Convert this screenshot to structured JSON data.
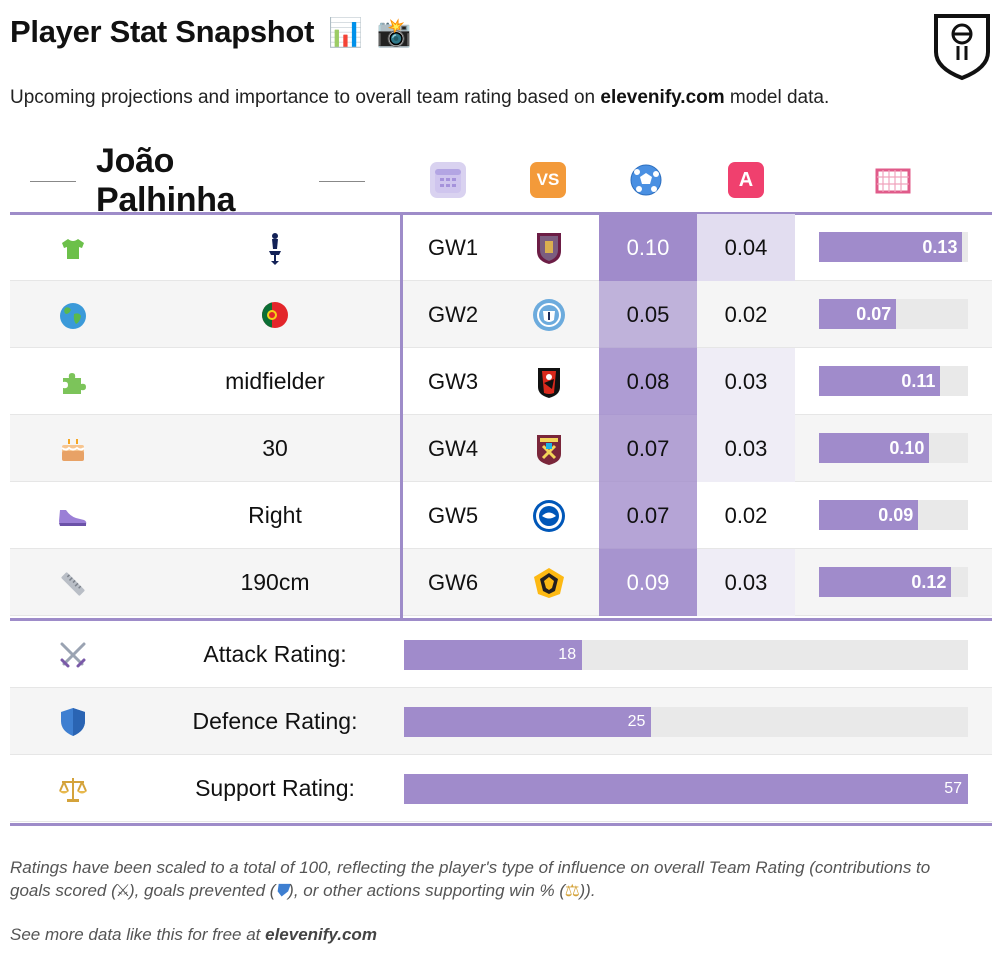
{
  "title": "Player Stat Snapshot",
  "title_emojis": [
    "📊",
    "📸"
  ],
  "subtitle": {
    "prefix": "Upcoming projections and importance to overall team rating based on ",
    "site": "elevenify.com",
    "suffix": " model data."
  },
  "player": {
    "name": "João Palhinha"
  },
  "header_icons": [
    "calendar-icon",
    "vs-icon",
    "football-icon",
    "assist-icon",
    "goal-net-icon"
  ],
  "header_texts": {
    "vs": "VS",
    "assist": "A"
  },
  "profile": [
    {
      "icon": "shirt-icon",
      "value": ""
    },
    {
      "icon": "globe-icon",
      "value": ""
    },
    {
      "icon": "puzzle-icon",
      "value": "midfielder"
    },
    {
      "icon": "cake-icon",
      "value": "30"
    },
    {
      "icon": "shoe-icon",
      "value": "Right"
    },
    {
      "icon": "ruler-icon",
      "value": "190cm"
    }
  ],
  "fixtures": [
    {
      "gw": "GW1",
      "opponent": "Burnley",
      "xg": 0.1,
      "xg_label": "0.10",
      "xa": "0.04",
      "total": 0.13,
      "total_label": "0.13"
    },
    {
      "gw": "GW2",
      "opponent": "Manchester City",
      "xg": 0.05,
      "xg_label": "0.05",
      "xa": "0.02",
      "total": 0.07,
      "total_label": "0.07"
    },
    {
      "gw": "GW3",
      "opponent": "Bournemouth",
      "xg": 0.08,
      "xg_label": "0.08",
      "xa": "0.03",
      "total": 0.11,
      "total_label": "0.11"
    },
    {
      "gw": "GW4",
      "opponent": "West Ham",
      "xg": 0.07,
      "xg_label": "0.07",
      "xa": "0.03",
      "total": 0.1,
      "total_label": "0.10"
    },
    {
      "gw": "GW5",
      "opponent": "Brighton",
      "xg": 0.07,
      "xg_label": "0.07",
      "xa": "0.02",
      "total": 0.09,
      "total_label": "0.09"
    },
    {
      "gw": "GW6",
      "opponent": "Wolves",
      "xg": 0.09,
      "xg_label": "0.09",
      "xa": "0.03",
      "total": 0.12,
      "total_label": "0.12"
    }
  ],
  "total_scale_max": 0.135,
  "ratings": [
    {
      "icon": "swords-icon",
      "label": "Attack Rating:",
      "value": 18,
      "value_label": "18"
    },
    {
      "icon": "shield-icon",
      "label": "Defence Rating:",
      "value": 25,
      "value_label": "25"
    },
    {
      "icon": "scales-icon",
      "label": "Support Rating:",
      "value": 57,
      "value_label": "57"
    }
  ],
  "rating_scale_max": 57,
  "footnote": {
    "line1": "Ratings have been scaled to a total of 100, reflecting the player's type of influence on overall Team Rating (contributions to",
    "line2_a": "goals scored (",
    "line2_b": "), goals prevented (",
    "line2_c": "), or other actions supporting win % (",
    "line2_d": "))."
  },
  "footer": {
    "prefix": "See more data like this for free at ",
    "site": "elevenify.com"
  },
  "colors": {
    "accent": "#9e8cc9",
    "bar": "#a08bcb",
    "bar_bg": "#e9e9e9"
  }
}
